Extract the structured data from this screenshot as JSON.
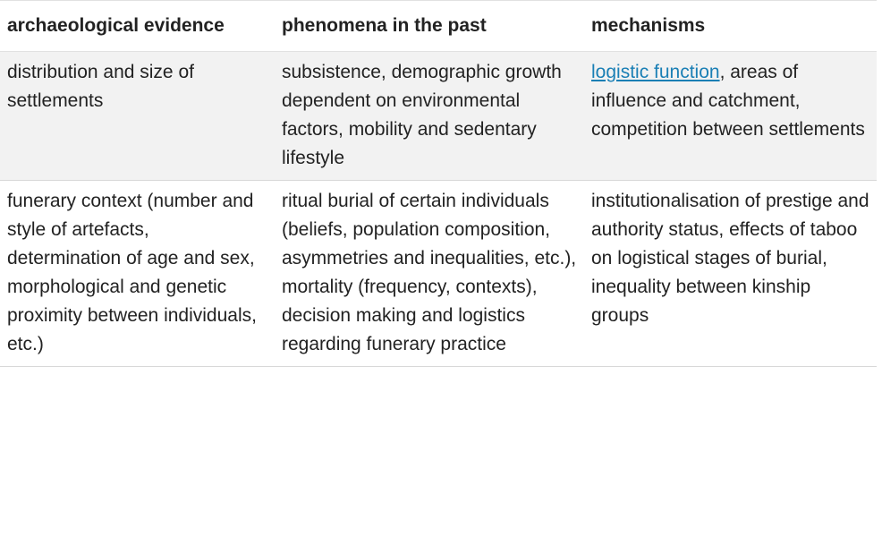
{
  "table": {
    "headers": [
      "archaeological evidence",
      "phenomena in the past",
      "mechanisms"
    ],
    "rows": [
      {
        "evidence": "distribution and size of settlements",
        "phenomena": "subsistence, demographic growth dependent on environmental factors, mobility and sedentary lifestyle",
        "mechanisms_link": "logistic function",
        "mechanisms_rest": ", areas of influence and catchment, competition between settlements"
      },
      {
        "evidence": "funerary context (number and style of artefacts, determination of age and sex, morphological and genetic proximity between individuals, etc.)",
        "phenomena": "ritual burial of certain individuals (beliefs, population composition, asymmetries and inequalities, etc.), mortality (frequency, contexts), decision making and logistics regarding funerary practice",
        "mechanisms": "institutionalisation of prestige and authority status, effects of taboo on logistical stages of burial, inequality between kinship groups"
      }
    ]
  }
}
